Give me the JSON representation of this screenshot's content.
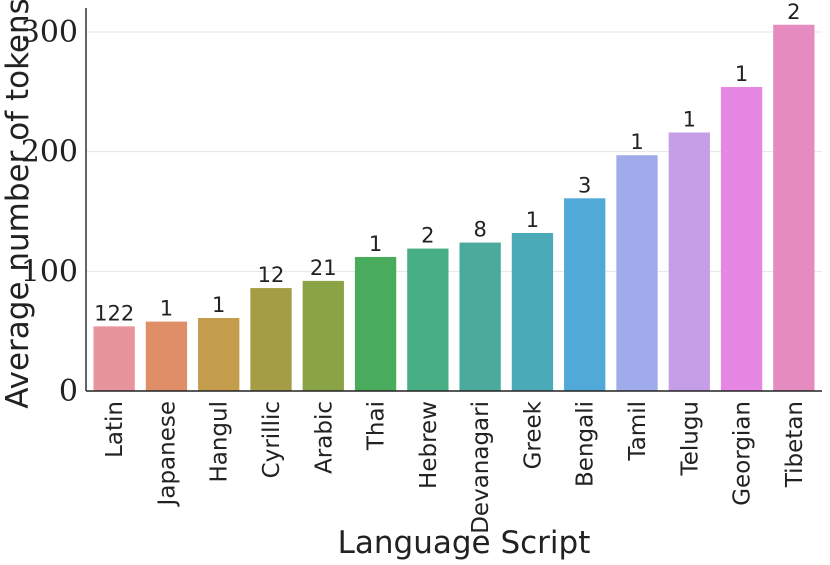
{
  "chart_data": {
    "type": "bar",
    "title": "",
    "xlabel": "Language Script",
    "ylabel": "Average number of tokens",
    "ylim": [
      0,
      320
    ],
    "yticks": [
      0,
      100,
      200,
      300
    ],
    "grid": true,
    "categories": [
      "Latin",
      "Japanese",
      "Hangul",
      "Cyrillic",
      "Arabic",
      "Thai",
      "Hebrew",
      "Devanagari",
      "Greek",
      "Bengali",
      "Tamil",
      "Telugu",
      "Georgian",
      "Tibetan"
    ],
    "values": [
      54,
      58,
      61,
      86,
      92,
      112,
      119,
      124,
      132,
      161,
      197,
      216,
      254,
      306
    ],
    "labels": [
      "122",
      "1",
      "1",
      "12",
      "21",
      "1",
      "2",
      "8",
      "1",
      "3",
      "1",
      "1",
      "1",
      "2"
    ],
    "colors": [
      "#e8949c",
      "#e08e68",
      "#c39c4c",
      "#a59d45",
      "#8aa445",
      "#49ac5c",
      "#48ae86",
      "#4aab9d",
      "#4aaab8",
      "#51a9d8",
      "#9fabea",
      "#c69ee8",
      "#e687e4",
      "#e58bbf"
    ]
  }
}
